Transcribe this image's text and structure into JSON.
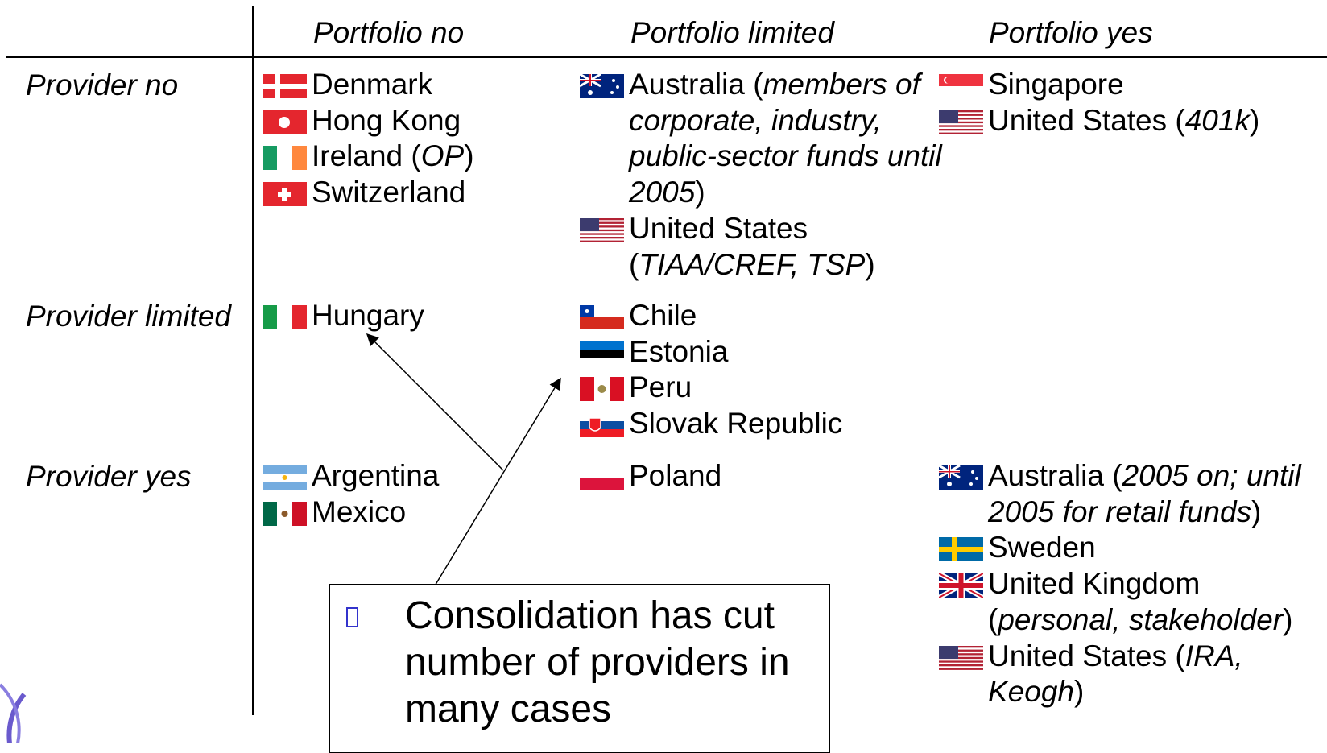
{
  "columns": [
    "Portfolio no",
    "Portfolio limited",
    "Portfolio yes"
  ],
  "rows": [
    {
      "label": "Provider no",
      "cells": [
        [
          {
            "parts": [
              "Denmark"
            ]
          },
          {
            "parts": [
              "Hong Kong"
            ]
          },
          {
            "parts": [
              "Ireland (",
              "OP",
              ")"
            ]
          },
          {
            "parts": [
              "Switzerland"
            ]
          }
        ],
        [
          {
            "parts": [
              "Australia (",
              "members of corporate, industry, public-sector funds until 2005",
              ")"
            ]
          },
          {
            "parts": [
              "United States (",
              "TIAA/CREF, TSP",
              ")"
            ]
          }
        ],
        [
          {
            "parts": [
              "Singapore"
            ]
          },
          {
            "parts": [
              "United States (",
              "401k",
              ")"
            ]
          }
        ]
      ]
    },
    {
      "label": "Provider limited",
      "cells": [
        [
          {
            "parts": [
              "Hungary"
            ]
          }
        ],
        [
          {
            "parts": [
              "Chile"
            ]
          },
          {
            "parts": [
              "Estonia"
            ]
          },
          {
            "parts": [
              "Peru"
            ]
          },
          {
            "parts": [
              "Slovak Republic"
            ]
          }
        ],
        []
      ]
    },
    {
      "label": "Provider yes",
      "cells": [
        [
          {
            "parts": [
              "Argentina"
            ]
          },
          {
            "parts": [
              "Mexico"
            ]
          }
        ],
        [
          {
            "parts": [
              "Poland"
            ]
          }
        ],
        [
          {
            "parts": [
              "Australia (",
              "2005 on; until 2005 for retail funds",
              ")"
            ]
          },
          {
            "parts": [
              "Sweden"
            ]
          },
          {
            "parts": [
              "United Kingdom (",
              "personal, stakeholder",
              ")"
            ]
          },
          {
            "parts": [
              "United States (",
              "IRA, Keogh",
              ")"
            ]
          }
        ]
      ]
    }
  ],
  "callout": "Consolidation has cut number of providers in many cases"
}
